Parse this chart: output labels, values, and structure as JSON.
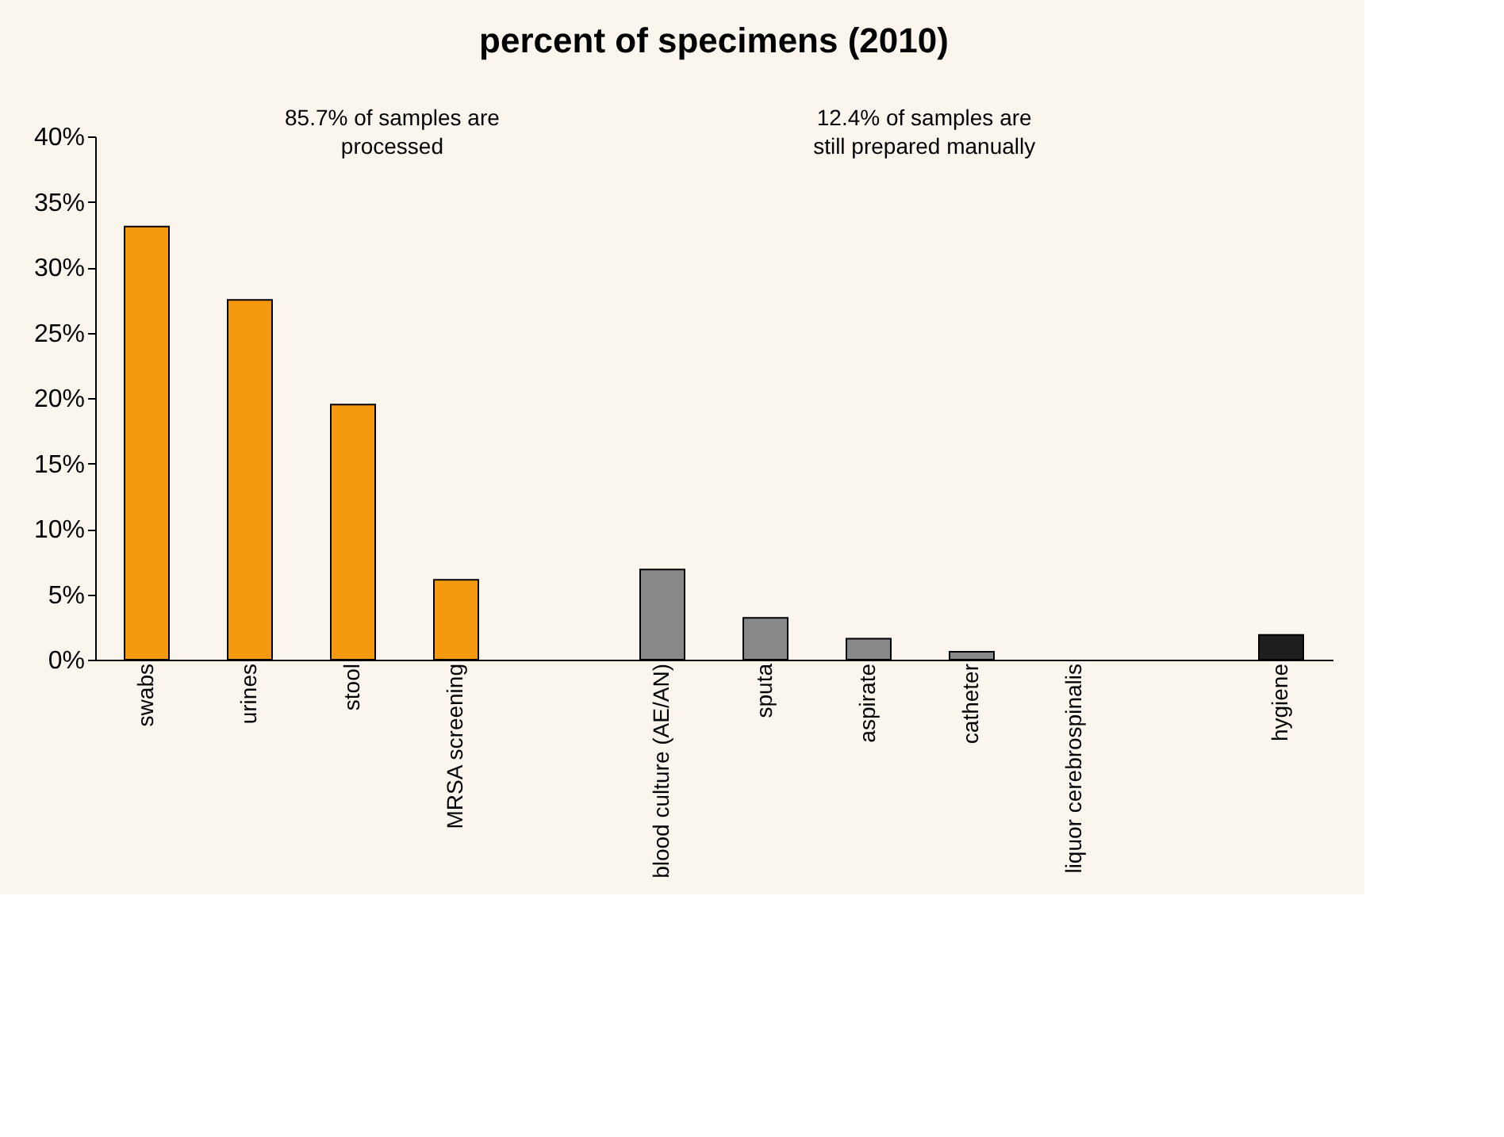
{
  "chart_data": {
    "type": "bar",
    "title": "percent of specimens (2010)",
    "categories": [
      "swabs",
      "urines",
      "stool",
      "MRSA screening",
      null,
      "blood culture (AE/AN)",
      "sputa",
      "aspirate",
      "catheter",
      "liquor cerebrospinalis",
      null,
      "hygiene"
    ],
    "values": [
      33.1,
      27.5,
      19.5,
      6.1,
      null,
      6.9,
      3.2,
      1.6,
      0.6,
      null,
      null,
      1.9
    ],
    "colors": [
      "#f59a0e",
      "#f59a0e",
      "#f59a0e",
      "#f59a0e",
      "#888888",
      "#888888",
      "#888888",
      "#888888",
      "#888888",
      "#888888",
      "#888888",
      "#1e1e1e"
    ],
    "ylim": [
      0,
      40
    ],
    "yticks": [
      {
        "value": 0,
        "label": "0%"
      },
      {
        "value": 5,
        "label": "5%"
      },
      {
        "value": 10,
        "label": "10%"
      },
      {
        "value": 15,
        "label": "15%"
      },
      {
        "value": 20,
        "label": "20%"
      },
      {
        "value": 25,
        "label": "25%"
      },
      {
        "value": 30,
        "label": "30%"
      },
      {
        "value": 35,
        "label": "35%"
      },
      {
        "value": 40,
        "label": "40%"
      }
    ],
    "annotations": [
      "85.7% of samples are\nprocessed",
      "12.4% of samples are\nstill prepared manually"
    ],
    "grid": false
  }
}
